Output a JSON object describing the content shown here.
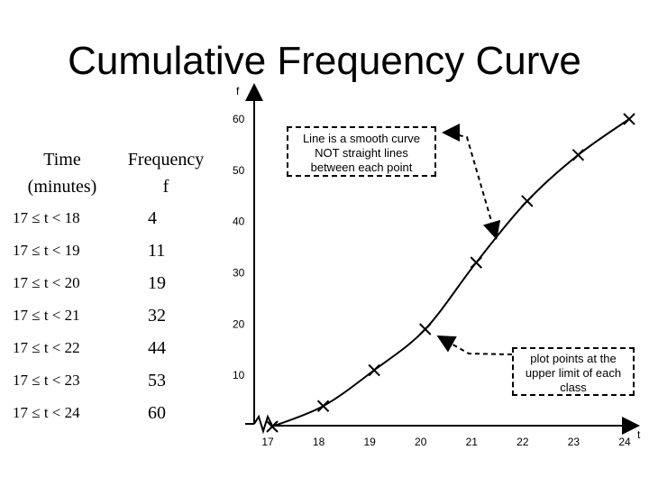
{
  "title": "Cumulative Frequency Curve",
  "table": {
    "headers": [
      {
        "line1": "Time",
        "line2": "(minutes)"
      },
      {
        "line1": "Frequency",
        "line2": "f"
      }
    ],
    "rows": [
      {
        "time": "17 ≤ t < 18",
        "freq": "4"
      },
      {
        "time": "17 ≤ t < 19",
        "freq": "11"
      },
      {
        "time": "17 ≤ t < 20",
        "freq": "19"
      },
      {
        "time": "17 ≤ t < 21",
        "freq": "32"
      },
      {
        "time": "17 ≤ t < 22",
        "freq": "44"
      },
      {
        "time": "17 ≤ t < 23",
        "freq": "53"
      },
      {
        "time": "17 ≤ t < 24",
        "freq": "60"
      }
    ]
  },
  "annotations": {
    "curve_note": [
      "Line is a smooth curve",
      "NOT straight lines",
      "between each point"
    ],
    "plot_note": [
      "plot points at the",
      "upper limit of each",
      "class"
    ]
  },
  "chart_data": {
    "type": "line",
    "xlabel": "t",
    "ylabel": "f",
    "x": [
      17,
      18,
      19,
      20,
      21,
      22,
      23,
      24
    ],
    "y": [
      0,
      4,
      11,
      19,
      32,
      44,
      53,
      60
    ],
    "x_ticks": [
      "17",
      "18",
      "19",
      "20",
      "21",
      "22",
      "23",
      "24"
    ],
    "y_ticks": [
      "10",
      "20",
      "30",
      "40",
      "50",
      "60"
    ],
    "xlim": [
      17,
      24
    ],
    "ylim": [
      0,
      60
    ],
    "markers": "cross",
    "axis_break": true,
    "grid": false
  }
}
